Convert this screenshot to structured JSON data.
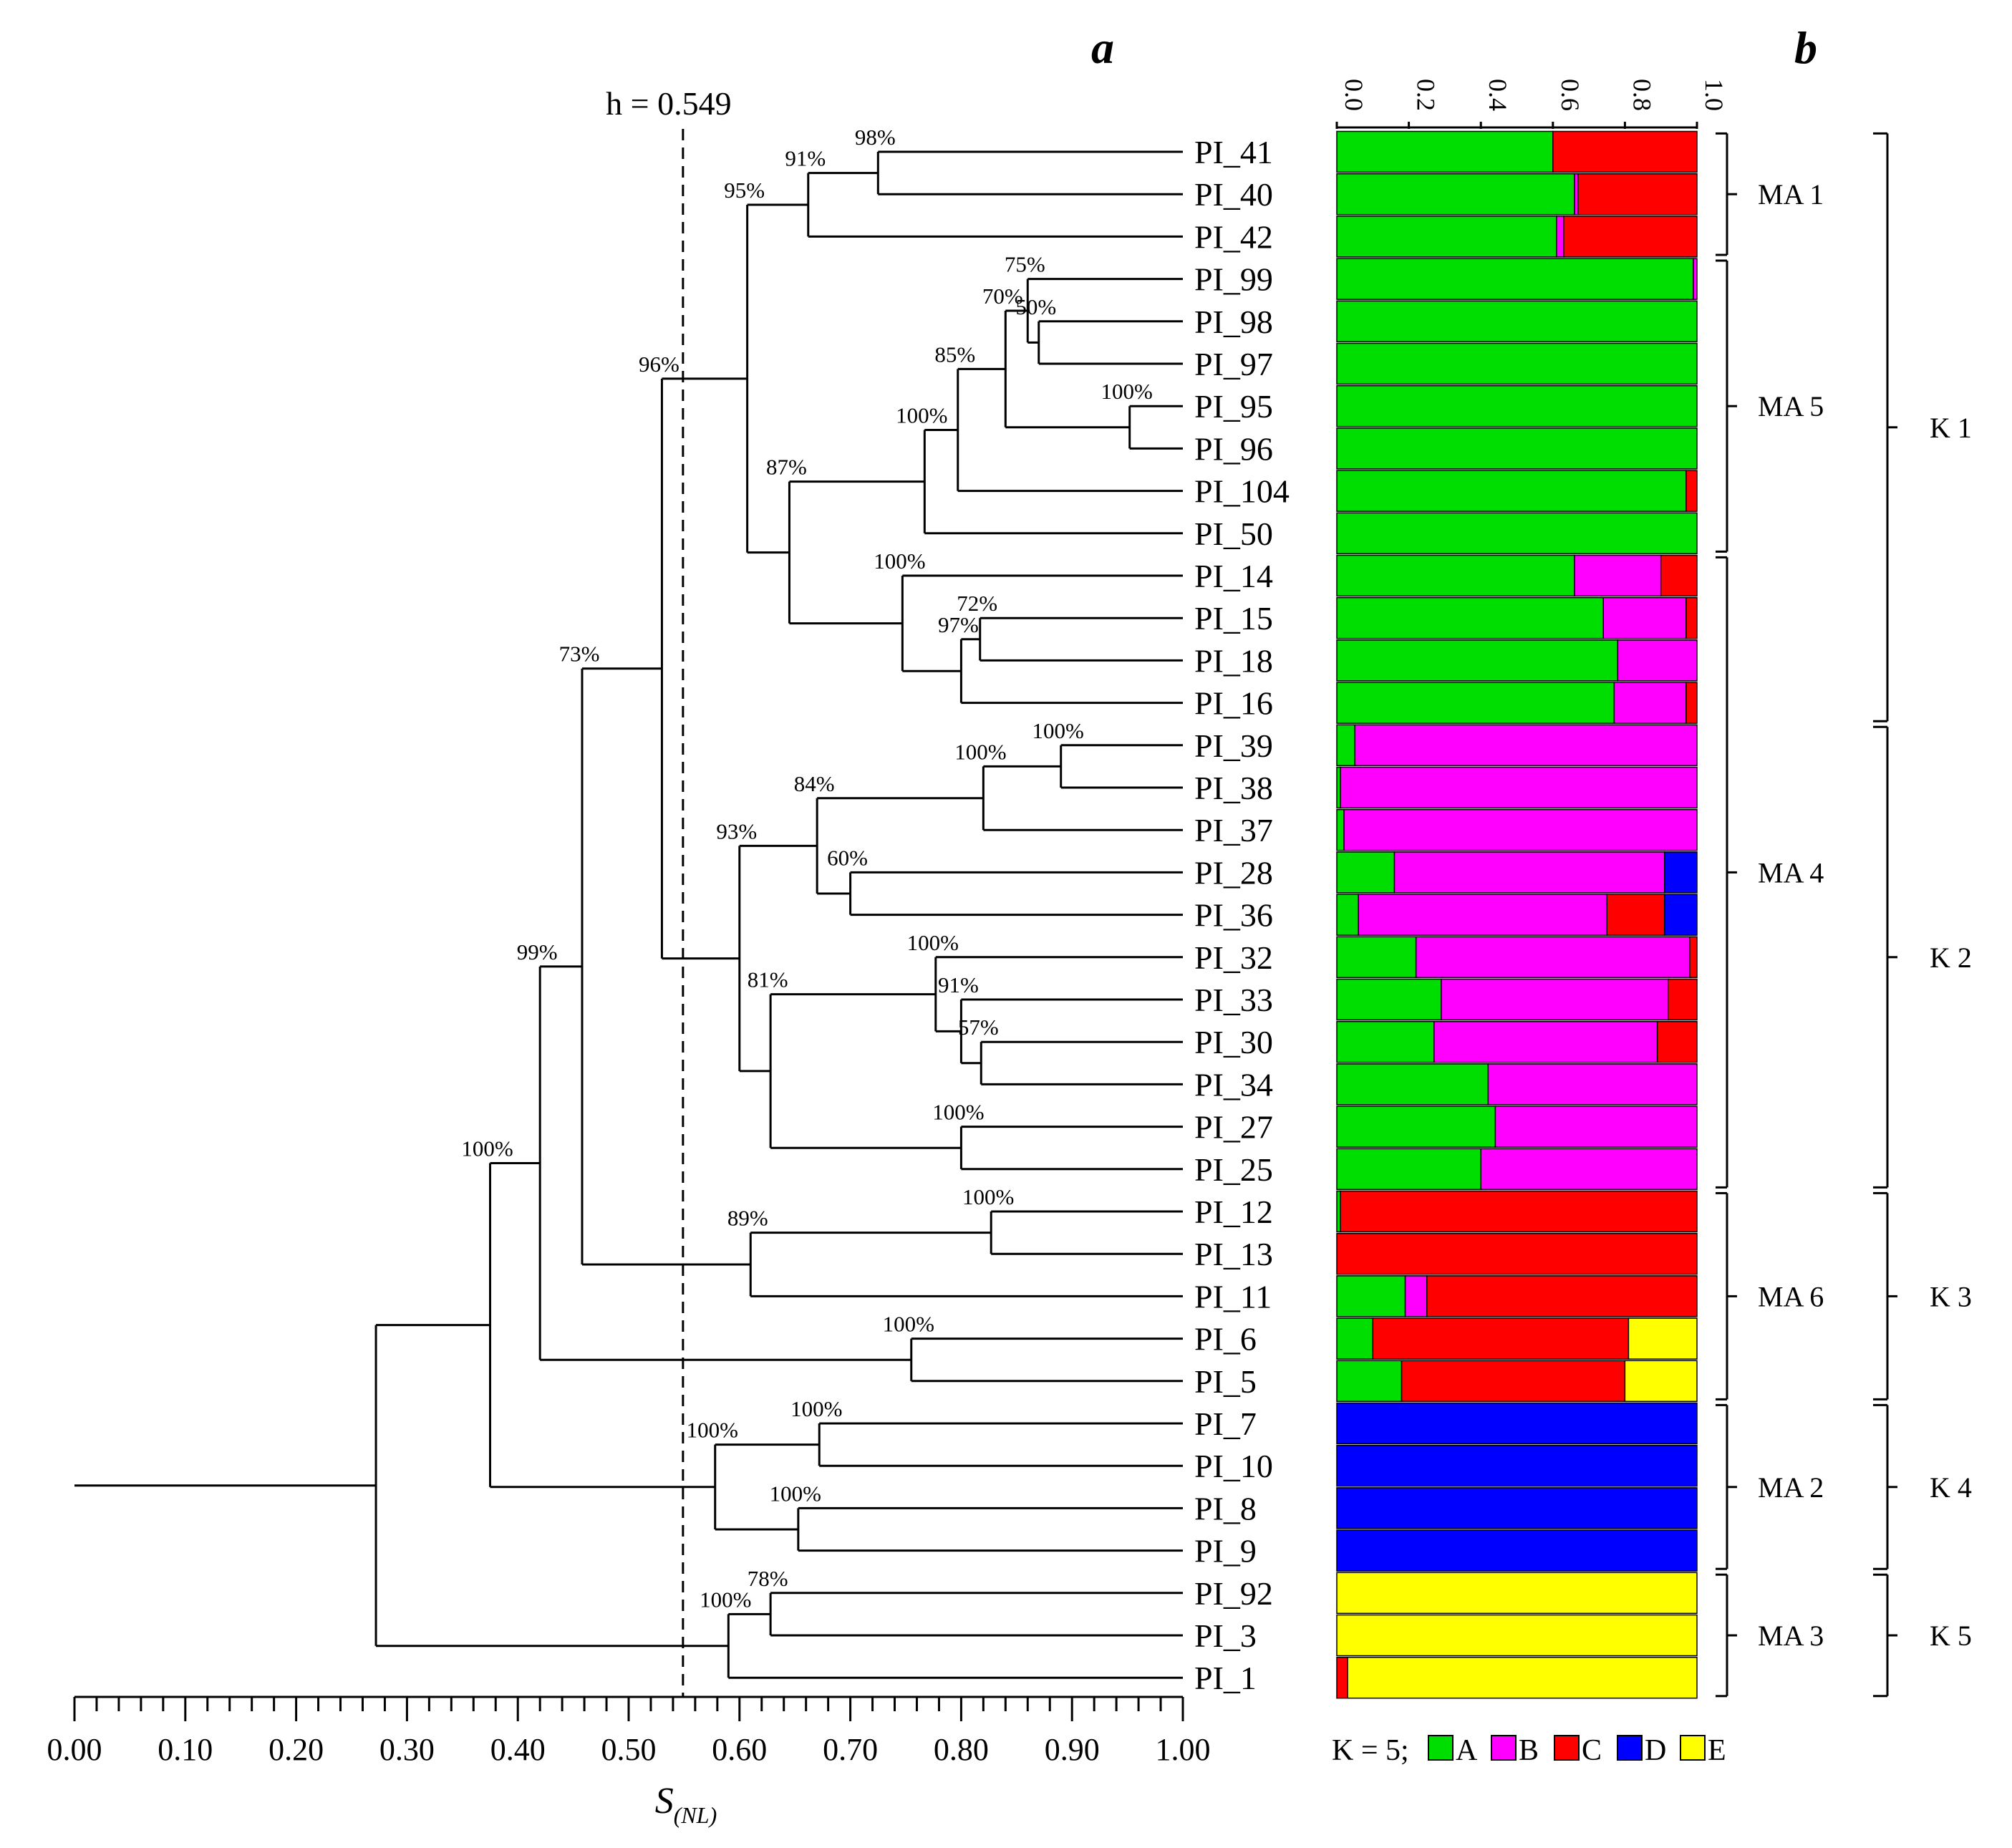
{
  "chart_data": [
    {
      "type": "dendrogram",
      "panel_label": "a",
      "xlabel_main": "S",
      "xlabel_sub": "(NL)",
      "xlim": [
        0.0,
        1.0
      ],
      "x_ticks": [
        "0.00",
        "0.10",
        "0.20",
        "0.30",
        "0.40",
        "0.50",
        "0.60",
        "0.70",
        "0.80",
        "0.90",
        "1.00"
      ],
      "cutoff": {
        "value": 0.549,
        "label": "h = 0.549"
      },
      "leaves": [
        "PI_41",
        "PI_40",
        "PI_42",
        "PI_99",
        "PI_98",
        "PI_97",
        "PI_95",
        "PI_96",
        "PI_104",
        "PI_50",
        "PI_14",
        "PI_15",
        "PI_18",
        "PI_16",
        "PI_39",
        "PI_38",
        "PI_37",
        "PI_28",
        "PI_36",
        "PI_32",
        "PI_33",
        "PI_30",
        "PI_34",
        "PI_27",
        "PI_25",
        "PI_12",
        "PI_13",
        "PI_11",
        "PI_6",
        "PI_5",
        "PI_7",
        "PI_10",
        "PI_8",
        "PI_9",
        "PI_92",
        "PI_3",
        "PI_1"
      ],
      "nodes": [
        {
          "id": "n1",
          "children": [
            "PI_41",
            "PI_40"
          ],
          "height": 0.725,
          "support": "98%"
        },
        {
          "id": "n2",
          "children": [
            "n1",
            "PI_42"
          ],
          "height": 0.662,
          "support": "91%"
        },
        {
          "id": "n3",
          "children": [
            "PI_98",
            "PI_97"
          ],
          "height": 0.87,
          "support": "50%"
        },
        {
          "id": "n4",
          "children": [
            "PI_99",
            "n3"
          ],
          "height": 0.86,
          "support": "75%"
        },
        {
          "id": "n5",
          "children": [
            "PI_95",
            "PI_96"
          ],
          "height": 0.952,
          "support": "100%"
        },
        {
          "id": "n6",
          "children": [
            "n4",
            "n5"
          ],
          "height": 0.84,
          "support": "70%"
        },
        {
          "id": "n7",
          "children": [
            "n6",
            "PI_104"
          ],
          "height": 0.797,
          "support": "85%"
        },
        {
          "id": "n8",
          "children": [
            "n7",
            "PI_50"
          ],
          "height": 0.767,
          "support": "100%"
        },
        {
          "id": "n9",
          "children": [
            "PI_15",
            "PI_18"
          ],
          "height": 0.817,
          "support": "72%"
        },
        {
          "id": "n10",
          "children": [
            "n9",
            "PI_16"
          ],
          "height": 0.8,
          "support": "97%"
        },
        {
          "id": "n11",
          "children": [
            "PI_14",
            "n10"
          ],
          "height": 0.747,
          "support": "100%"
        },
        {
          "id": "n12",
          "children": [
            "n8",
            "n11"
          ],
          "height": 0.645,
          "support": "87%"
        },
        {
          "id": "n13",
          "children": [
            "n2",
            "n12"
          ],
          "height": 0.607,
          "support": "95%"
        },
        {
          "id": "n14",
          "children": [
            "PI_39",
            "PI_38"
          ],
          "height": 0.89,
          "support": "100%"
        },
        {
          "id": "n15",
          "children": [
            "n14",
            "PI_37"
          ],
          "height": 0.82,
          "support": "100%"
        },
        {
          "id": "n16",
          "children": [
            "PI_28",
            "PI_36"
          ],
          "height": 0.7,
          "support": "60%"
        },
        {
          "id": "n17",
          "children": [
            "n15",
            "n16"
          ],
          "height": 0.67,
          "support": "84%"
        },
        {
          "id": "n18",
          "children": [
            "PI_30",
            "PI_34"
          ],
          "height": 0.818,
          "support": "57%"
        },
        {
          "id": "n19",
          "children": [
            "PI_33",
            "n18"
          ],
          "height": 0.8,
          "support": "91%"
        },
        {
          "id": "n20",
          "children": [
            "PI_32",
            "n19"
          ],
          "height": 0.777,
          "support": "100%"
        },
        {
          "id": "n21",
          "children": [
            "PI_27",
            "PI_25"
          ],
          "height": 0.8,
          "support": "100%"
        },
        {
          "id": "n22",
          "children": [
            "n20",
            "n21"
          ],
          "height": 0.628,
          "support": "81%"
        },
        {
          "id": "n23",
          "children": [
            "n17",
            "n22"
          ],
          "height": 0.6,
          "support": "93%"
        },
        {
          "id": "n24",
          "children": [
            "n13",
            "n23"
          ],
          "height": 0.53,
          "support": "96%"
        },
        {
          "id": "n25",
          "children": [
            "PI_12",
            "PI_13"
          ],
          "height": 0.827,
          "support": "100%"
        },
        {
          "id": "n26",
          "children": [
            "n25",
            "PI_11"
          ],
          "height": 0.61,
          "support": "89%"
        },
        {
          "id": "n27",
          "children": [
            "n24",
            "n26"
          ],
          "height": 0.458,
          "support": "73%"
        },
        {
          "id": "n28",
          "children": [
            "PI_6",
            "PI_5"
          ],
          "height": 0.755,
          "support": "100%"
        },
        {
          "id": "n29",
          "children": [
            "n27",
            "n28"
          ],
          "height": 0.42,
          "support": "99%"
        },
        {
          "id": "n30",
          "children": [
            "PI_7",
            "PI_10"
          ],
          "height": 0.672,
          "support": "100%"
        },
        {
          "id": "n31",
          "children": [
            "PI_8",
            "PI_9"
          ],
          "height": 0.653,
          "support": "100%"
        },
        {
          "id": "n32",
          "children": [
            "n30",
            "n31"
          ],
          "height": 0.578,
          "support": "100%"
        },
        {
          "id": "n33",
          "children": [
            "n29",
            "n32"
          ],
          "height": 0.375,
          "support": "100%"
        },
        {
          "id": "n34",
          "children": [
            "PI_92",
            "PI_3"
          ],
          "height": 0.628,
          "support": "78%"
        },
        {
          "id": "n35",
          "children": [
            "n34",
            "PI_1"
          ],
          "height": 0.59,
          "support": "100%"
        },
        {
          "id": "root",
          "children": [
            "n33",
            "n35"
          ],
          "height": 0.272,
          "support": ""
        }
      ]
    },
    {
      "type": "stacked_bar",
      "orientation": "horizontal",
      "panel_label": "b",
      "xlim": [
        0.0,
        1.0
      ],
      "x_ticks": [
        "0.0",
        "0.2",
        "0.4",
        "0.6",
        "0.8",
        "1.0"
      ],
      "legend_prefix": "K = 5;",
      "components": [
        {
          "name": "A",
          "color": "#00dd00"
        },
        {
          "name": "B",
          "color": "#ff00ff"
        },
        {
          "name": "C",
          "color": "#ff0000"
        },
        {
          "name": "D",
          "color": "#0000ff"
        },
        {
          "name": "E",
          "color": "#ffff00"
        }
      ],
      "bars": [
        {
          "label": "PI_41",
          "values": [
            0.6,
            0.0,
            0.4,
            0.0,
            0.0
          ]
        },
        {
          "label": "PI_40",
          "values": [
            0.66,
            0.01,
            0.33,
            0.0,
            0.0
          ]
        },
        {
          "label": "PI_42",
          "values": [
            0.61,
            0.02,
            0.37,
            0.0,
            0.0
          ]
        },
        {
          "label": "PI_99",
          "values": [
            0.99,
            0.01,
            0.0,
            0.0,
            0.0
          ]
        },
        {
          "label": "PI_98",
          "values": [
            1.0,
            0.0,
            0.0,
            0.0,
            0.0
          ]
        },
        {
          "label": "PI_97",
          "values": [
            1.0,
            0.0,
            0.0,
            0.0,
            0.0
          ]
        },
        {
          "label": "PI_95",
          "values": [
            1.0,
            0.0,
            0.0,
            0.0,
            0.0
          ]
        },
        {
          "label": "PI_96",
          "values": [
            1.0,
            0.0,
            0.0,
            0.0,
            0.0
          ]
        },
        {
          "label": "PI_104",
          "values": [
            0.97,
            0.0,
            0.03,
            0.0,
            0.0
          ]
        },
        {
          "label": "PI_50",
          "values": [
            1.0,
            0.0,
            0.0,
            0.0,
            0.0
          ]
        },
        {
          "label": "PI_14",
          "values": [
            0.66,
            0.24,
            0.1,
            0.0,
            0.0
          ]
        },
        {
          "label": "PI_15",
          "values": [
            0.74,
            0.23,
            0.03,
            0.0,
            0.0
          ]
        },
        {
          "label": "PI_18",
          "values": [
            0.78,
            0.22,
            0.0,
            0.0,
            0.0
          ]
        },
        {
          "label": "PI_16",
          "values": [
            0.77,
            0.2,
            0.03,
            0.0,
            0.0
          ]
        },
        {
          "label": "PI_39",
          "values": [
            0.05,
            0.95,
            0.0,
            0.0,
            0.0
          ]
        },
        {
          "label": "PI_38",
          "values": [
            0.01,
            0.99,
            0.0,
            0.0,
            0.0
          ]
        },
        {
          "label": "PI_37",
          "values": [
            0.02,
            0.98,
            0.0,
            0.0,
            0.0
          ]
        },
        {
          "label": "PI_28",
          "values": [
            0.16,
            0.75,
            0.0,
            0.09,
            0.0
          ]
        },
        {
          "label": "PI_36",
          "values": [
            0.06,
            0.69,
            0.16,
            0.09,
            0.0
          ]
        },
        {
          "label": "PI_32",
          "values": [
            0.22,
            0.76,
            0.02,
            0.0,
            0.0
          ]
        },
        {
          "label": "PI_33",
          "values": [
            0.29,
            0.63,
            0.08,
            0.0,
            0.0
          ]
        },
        {
          "label": "PI_30",
          "values": [
            0.27,
            0.62,
            0.11,
            0.0,
            0.0
          ]
        },
        {
          "label": "PI_34",
          "values": [
            0.42,
            0.58,
            0.0,
            0.0,
            0.0
          ]
        },
        {
          "label": "PI_27",
          "values": [
            0.44,
            0.56,
            0.0,
            0.0,
            0.0
          ]
        },
        {
          "label": "PI_25",
          "values": [
            0.4,
            0.6,
            0.0,
            0.0,
            0.0
          ]
        },
        {
          "label": "PI_12",
          "values": [
            0.01,
            0.0,
            0.99,
            0.0,
            0.0
          ]
        },
        {
          "label": "PI_13",
          "values": [
            0.0,
            0.0,
            1.0,
            0.0,
            0.0
          ]
        },
        {
          "label": "PI_11",
          "values": [
            0.19,
            0.06,
            0.75,
            0.0,
            0.0
          ]
        },
        {
          "label": "PI_6",
          "values": [
            0.1,
            0.0,
            0.71,
            0.0,
            0.19
          ]
        },
        {
          "label": "PI_5",
          "values": [
            0.18,
            0.0,
            0.62,
            0.0,
            0.2
          ]
        },
        {
          "label": "PI_7",
          "values": [
            0.0,
            0.0,
            0.0,
            1.0,
            0.0
          ]
        },
        {
          "label": "PI_10",
          "values": [
            0.0,
            0.0,
            0.0,
            1.0,
            0.0
          ]
        },
        {
          "label": "PI_8",
          "values": [
            0.0,
            0.0,
            0.0,
            1.0,
            0.0
          ]
        },
        {
          "label": "PI_9",
          "values": [
            0.0,
            0.0,
            0.0,
            1.0,
            0.0
          ]
        },
        {
          "label": "PI_92",
          "values": [
            0.0,
            0.0,
            0.0,
            0.0,
            1.0
          ]
        },
        {
          "label": "PI_3",
          "values": [
            0.0,
            0.0,
            0.0,
            0.0,
            1.0
          ]
        },
        {
          "label": "PI_1",
          "values": [
            0.0,
            0.0,
            0.03,
            0.0,
            0.97
          ]
        }
      ],
      "ma_groups": [
        {
          "label": "MA 1",
          "start": "PI_41",
          "end": "PI_42"
        },
        {
          "label": "MA 5",
          "start": "PI_99",
          "end": "PI_50"
        },
        {
          "label": "MA 4",
          "start": "PI_14",
          "end": "PI_25"
        },
        {
          "label": "MA 6",
          "start": "PI_12",
          "end": "PI_5"
        },
        {
          "label": "MA 2",
          "start": "PI_7",
          "end": "PI_9"
        },
        {
          "label": "MA 3",
          "start": "PI_92",
          "end": "PI_1"
        }
      ],
      "k_groups": [
        {
          "label": "K 1",
          "start": "PI_41",
          "end": "PI_16"
        },
        {
          "label": "K 2",
          "start": "PI_39",
          "end": "PI_25"
        },
        {
          "label": "K 3",
          "start": "PI_12",
          "end": "PI_5"
        },
        {
          "label": "K 4",
          "start": "PI_7",
          "end": "PI_9"
        },
        {
          "label": "K 5",
          "start": "PI_92",
          "end": "PI_1"
        }
      ]
    }
  ]
}
